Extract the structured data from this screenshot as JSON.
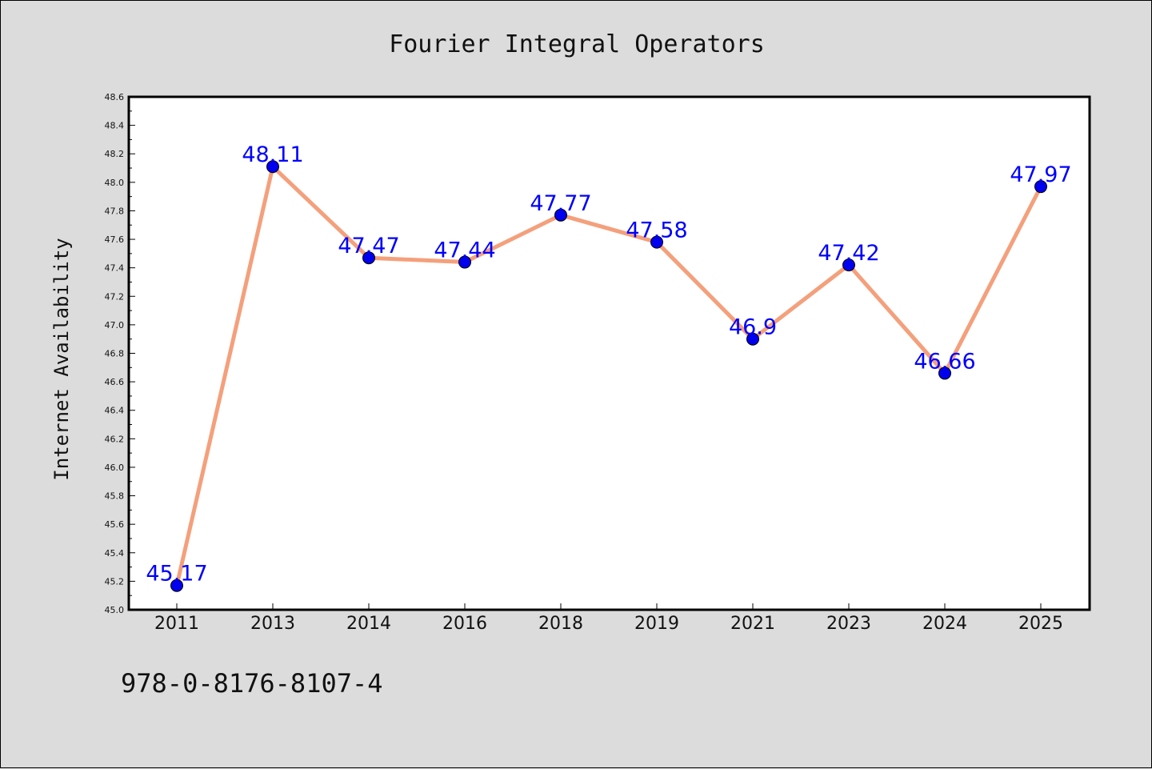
{
  "chart_data": {
    "type": "line",
    "title": "Fourier Integral Operators",
    "xlabel": "",
    "ylabel": "Internet Availability",
    "categories": [
      "2011",
      "2013",
      "2014",
      "2016",
      "2018",
      "2019",
      "2021",
      "2023",
      "2024",
      "2025"
    ],
    "series": [
      {
        "values": [
          45.17,
          48.11,
          47.47,
          47.44,
          47.77,
          47.58,
          46.9,
          47.42,
          46.66,
          47.97
        ],
        "labels": [
          "45.17",
          "48.11",
          "47.47",
          "47.44",
          "47.77",
          "47.58",
          "46.9",
          "47.42",
          "46.66",
          "47.97"
        ],
        "line_color": "#f4a07c",
        "marker_color": "#0000ee",
        "label_color": "#0000ff"
      }
    ],
    "ylim": [
      45.0,
      48.6
    ],
    "yticks": [
      "45.0",
      "45.2",
      "45.4",
      "45.6",
      "45.8",
      "46.0",
      "46.2",
      "46.4",
      "46.6",
      "46.8",
      "47.0",
      "47.2",
      "47.4",
      "47.6",
      "47.8",
      "48.0",
      "48.2",
      "48.4",
      "48.6"
    ],
    "grid": false,
    "legend": "none"
  },
  "footer": {
    "isbn": "978-0-8176-8107-4"
  }
}
